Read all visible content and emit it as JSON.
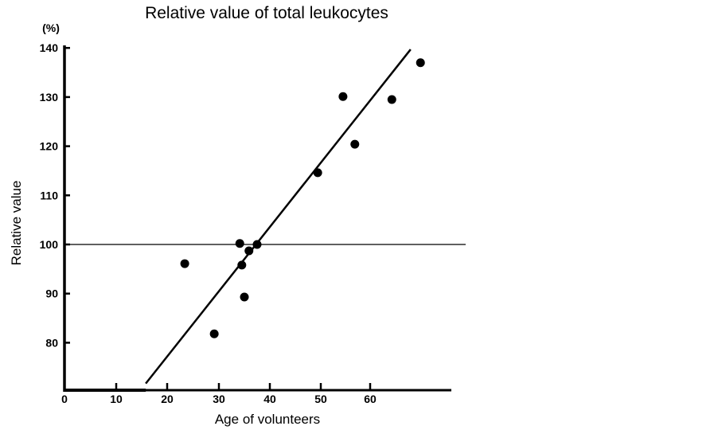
{
  "chart_data": {
    "type": "scatter",
    "title": "Relative value of total leukocytes",
    "xlabel": "Age of volunteers",
    "ylabel": "Relative value",
    "yunit": "(%)",
    "xticks": [
      0,
      10,
      20,
      30,
      40,
      50,
      60
    ],
    "yticks": [
      80,
      90,
      100,
      110,
      120,
      130,
      140
    ],
    "xlim": [
      0,
      75
    ],
    "ylim": [
      71.7,
      140
    ],
    "grid": false,
    "points": [
      {
        "x": 23.4,
        "y": 96.1
      },
      {
        "x": 29.1,
        "y": 81.8
      },
      {
        "x": 34.1,
        "y": 100.2
      },
      {
        "x": 34.5,
        "y": 95.8
      },
      {
        "x": 35.0,
        "y": 89.3
      },
      {
        "x": 35.9,
        "y": 98.7
      },
      {
        "x": 37.5,
        "y": 100.0
      },
      {
        "x": 49.4,
        "y": 114.6
      },
      {
        "x": 54.5,
        "y": 130.1
      },
      {
        "x": 56.9,
        "y": 120.4
      },
      {
        "x": 64.4,
        "y": 129.5
      },
      {
        "x": 70.2,
        "y": 137.0
      }
    ],
    "trend_line": [
      {
        "x": 15.8,
        "y": 71.7
      },
      {
        "x": 68.2,
        "y": 139.7
      }
    ],
    "reference_line_y": 100
  }
}
